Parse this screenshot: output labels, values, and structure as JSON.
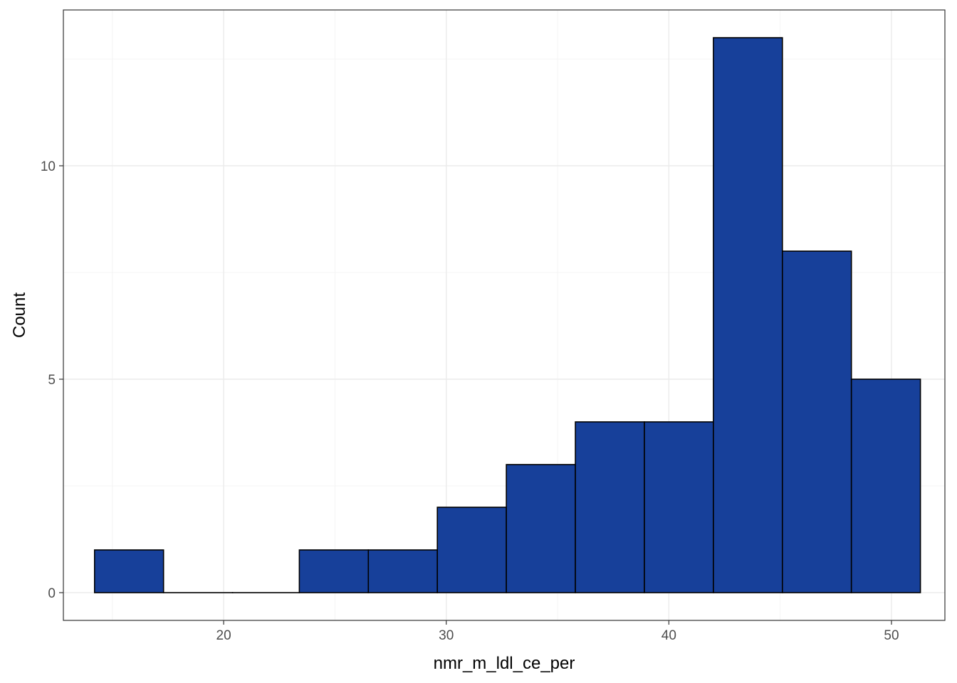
{
  "chart_data": {
    "type": "bar",
    "subtype": "histogram",
    "xlabel": "nmr_m_ldl_ce_per",
    "ylabel": "Count",
    "bar_color": "#17409A",
    "bar_edge_color": "#000000",
    "grid": true,
    "xlim": [
      12.8,
      52.4
    ],
    "ylim": [
      -0.65,
      13.65
    ],
    "x_ticks": [
      20,
      30,
      40,
      50
    ],
    "y_ticks": [
      0,
      5,
      10
    ],
    "bins": [
      {
        "x0": 14.2,
        "x1": 17.3,
        "count": 1
      },
      {
        "x0": 17.3,
        "x1": 20.4,
        "count": 0
      },
      {
        "x0": 20.4,
        "x1": 23.4,
        "count": 0
      },
      {
        "x0": 23.4,
        "x1": 26.5,
        "count": 1
      },
      {
        "x0": 26.5,
        "x1": 29.6,
        "count": 1
      },
      {
        "x0": 29.6,
        "x1": 32.7,
        "count": 2
      },
      {
        "x0": 32.7,
        "x1": 35.8,
        "count": 3
      },
      {
        "x0": 35.8,
        "x1": 38.9,
        "count": 4
      },
      {
        "x0": 38.9,
        "x1": 42.0,
        "count": 4
      },
      {
        "x0": 42.0,
        "x1": 45.1,
        "count": 13
      },
      {
        "x0": 45.1,
        "x1": 48.2,
        "count": 8
      },
      {
        "x0": 48.2,
        "x1": 51.3,
        "count": 5
      }
    ]
  }
}
